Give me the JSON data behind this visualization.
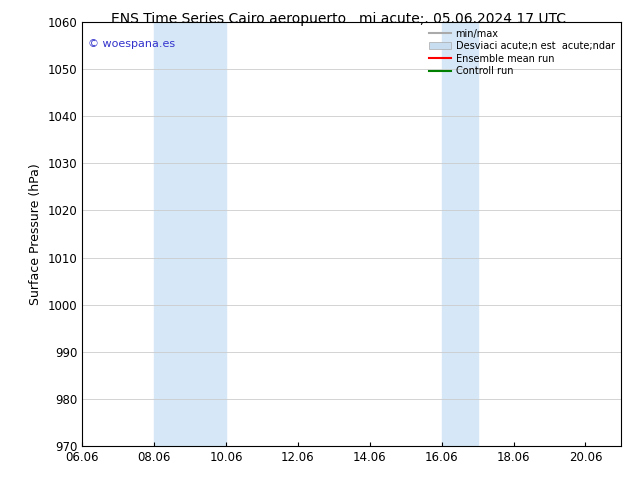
{
  "title_left": "ENS Time Series Cairo aeropuerto",
  "title_right": "mi acute;. 05.06.2024 17 UTC",
  "ylabel": "Surface Pressure (hPa)",
  "xlim": [
    6.0,
    21.0
  ],
  "ylim": [
    970,
    1060
  ],
  "yticks": [
    970,
    980,
    990,
    1000,
    1010,
    1020,
    1030,
    1040,
    1050,
    1060
  ],
  "xtick_labels": [
    "06.06",
    "08.06",
    "10.06",
    "12.06",
    "14.06",
    "16.06",
    "18.06",
    "20.06"
  ],
  "xtick_positions": [
    6.0,
    8.0,
    10.0,
    12.0,
    14.0,
    16.0,
    18.0,
    20.0
  ],
  "shaded_regions": [
    {
      "xmin": 8.0,
      "xmax": 10.0,
      "color": "#d6e8f7"
    },
    {
      "xmin": 16.0,
      "xmax": 17.0,
      "color": "#d6e8f7"
    }
  ],
  "watermark_text": "© woespana.es",
  "watermark_color": "#3333cc",
  "legend_label_minmax": "min/max",
  "legend_label_std": "Desviaci acute;n est  acute;ndar",
  "legend_label_ensemble": "Ensemble mean run",
  "legend_label_control": "Controll run",
  "legend_color_minmax": "#aaaaaa",
  "legend_color_std": "#c8ddf0",
  "legend_color_ensemble": "#ff0000",
  "legend_color_control": "#008000",
  "bg_color": "#ffffff",
  "plot_bg_color": "#ffffff",
  "grid_color": "#cccccc",
  "tick_label_fontsize": 8.5,
  "axis_label_fontsize": 9,
  "title_fontsize": 10
}
